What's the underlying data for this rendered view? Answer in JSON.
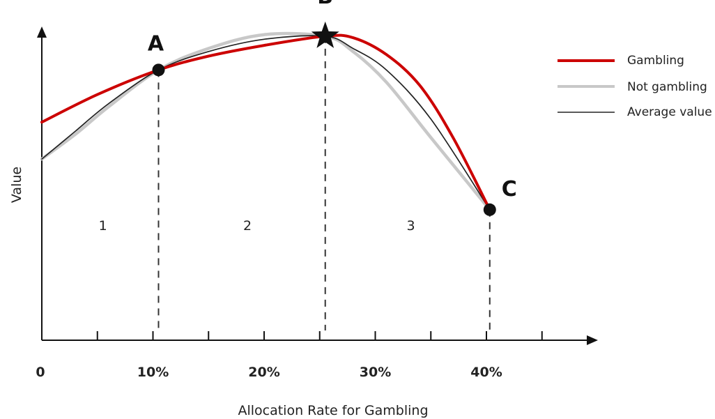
{
  "chart_data": {
    "type": "line",
    "title": "",
    "xlabel": "Allocation Rate for Gambling",
    "ylabel": "Value",
    "xlim": [
      0,
      50
    ],
    "ylim": [
      0,
      100
    ],
    "x_ticks": [
      0,
      5,
      10,
      15,
      20,
      25,
      30,
      35,
      40,
      45
    ],
    "x_tick_labels": [
      {
        "x": 0,
        "label": "0"
      },
      {
        "x": 10,
        "label": "10%"
      },
      {
        "x": 20,
        "label": "20%"
      },
      {
        "x": 30,
        "label": "30%"
      },
      {
        "x": 40,
        "label": "40%"
      }
    ],
    "y_ticks_shown": false,
    "grid": false,
    "legend_position": "top-right",
    "series": [
      {
        "name": "Gambling",
        "color": "#cc0000",
        "x": [
          0,
          5,
          10.5,
          15,
          20,
          25.5,
          28,
          31,
          34,
          37,
          40.3
        ],
        "y": [
          71,
          80,
          88,
          92.5,
          96,
          99,
          98.5,
          93,
          83,
          66,
          42.5
        ]
      },
      {
        "name": "Not gambling",
        "color": "#c8c8c8",
        "x": [
          0,
          3,
          6,
          10.5,
          15,
          20,
          25.5,
          28,
          31,
          35,
          40.3
        ],
        "y": [
          59,
          67,
          76,
          88,
          95,
          99.5,
          99,
          94,
          84,
          66,
          42.5
        ]
      },
      {
        "name": "Average value",
        "color": "#222222",
        "x": [
          0,
          3,
          6,
          10.5,
          15,
          20,
          25.5,
          28,
          31,
          35,
          40.3
        ],
        "y": [
          59,
          68,
          77,
          88,
          94,
          98,
          99,
          95,
          88,
          72,
          42.5
        ]
      }
    ],
    "points": [
      {
        "label": "A",
        "x": 10.5,
        "y": 88,
        "marker": "circle"
      },
      {
        "label": "B",
        "x": 25.5,
        "y": 99,
        "marker": "star"
      },
      {
        "label": "C",
        "x": 40.3,
        "y": 42.5,
        "marker": "circle"
      }
    ],
    "regions": [
      {
        "label": "1",
        "x": 5.5
      },
      {
        "label": "2",
        "x": 18.5
      },
      {
        "label": "3",
        "x": 33.2
      }
    ]
  }
}
